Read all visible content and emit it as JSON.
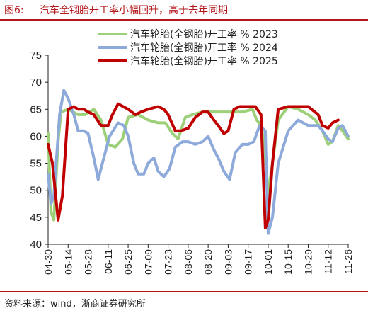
{
  "figure": {
    "label": "图6:",
    "title": "汽车全钢胎开工率小幅回升，高于去年同期",
    "source": "资料来源：wind，浙商证券研究所"
  },
  "chart_data": {
    "type": "line",
    "ylim": [
      40,
      75
    ],
    "yticks": [
      40,
      45,
      50,
      55,
      60,
      65,
      70,
      75
    ],
    "xlim": [
      "04-30",
      "11-26"
    ],
    "xtick_labels": [
      "04-30",
      "05-14",
      "05-28",
      "06-11",
      "06-25",
      "07-09",
      "07-23",
      "08-06",
      "08-20",
      "09-03",
      "09-17",
      "10-01",
      "10-15",
      "10-29",
      "11-12",
      "11-26"
    ],
    "legend_position": "top-right",
    "grid": false,
    "series": [
      {
        "name": "汽车轮胎(全钢胎)开工率 % 2023",
        "color": "#9ed07a",
        "points": [
          [
            "04-30",
            60.5
          ],
          [
            "05-02",
            46
          ],
          [
            "05-04",
            44.5
          ],
          [
            "05-07",
            59
          ],
          [
            "05-09",
            64.5
          ],
          [
            "05-14",
            65
          ],
          [
            "05-21",
            64
          ],
          [
            "05-26",
            64
          ],
          [
            "06-01",
            65
          ],
          [
            "06-06",
            63
          ],
          [
            "06-11",
            58.5
          ],
          [
            "06-16",
            58
          ],
          [
            "06-21",
            59.5
          ],
          [
            "06-25",
            63.5
          ],
          [
            "07-02",
            64
          ],
          [
            "07-09",
            63
          ],
          [
            "07-16",
            62.5
          ],
          [
            "07-21",
            62.5
          ],
          [
            "07-26",
            60.5
          ],
          [
            "07-30",
            59.5
          ],
          [
            "08-04",
            63.5
          ],
          [
            "08-09",
            64
          ],
          [
            "08-16",
            64.5
          ],
          [
            "08-23",
            64.5
          ],
          [
            "08-30",
            64.5
          ],
          [
            "09-06",
            64.5
          ],
          [
            "09-13",
            64.5
          ],
          [
            "09-20",
            65
          ],
          [
            "09-23",
            63
          ],
          [
            "09-26",
            62
          ],
          [
            "09-28",
            59
          ],
          [
            "10-01",
            49.5
          ],
          [
            "10-04",
            55
          ],
          [
            "10-08",
            63
          ],
          [
            "10-15",
            65.5
          ],
          [
            "10-22",
            65
          ],
          [
            "10-29",
            64
          ],
          [
            "11-03",
            63
          ],
          [
            "11-08",
            61
          ],
          [
            "11-12",
            58.5
          ],
          [
            "11-15",
            59
          ],
          [
            "11-19",
            62
          ],
          [
            "11-22",
            61
          ],
          [
            "11-26",
            59.5
          ]
        ]
      },
      {
        "name": "汽车轮胎(全钢胎)开工率 % 2024",
        "color": "#8eaadb",
        "points": [
          [
            "04-30",
            53
          ],
          [
            "05-02",
            47.5
          ],
          [
            "05-04",
            49
          ],
          [
            "05-08",
            64
          ],
          [
            "05-11",
            68.5
          ],
          [
            "05-14",
            67
          ],
          [
            "05-18",
            64
          ],
          [
            "05-21",
            61
          ],
          [
            "05-25",
            61
          ],
          [
            "05-28",
            60.5
          ],
          [
            "06-01",
            56
          ],
          [
            "06-04",
            52
          ],
          [
            "06-08",
            56
          ],
          [
            "06-12",
            60
          ],
          [
            "06-18",
            62.5
          ],
          [
            "06-22",
            62
          ],
          [
            "06-25",
            60
          ],
          [
            "06-29",
            55
          ],
          [
            "07-02",
            53
          ],
          [
            "07-06",
            53
          ],
          [
            "07-09",
            55
          ],
          [
            "07-13",
            56
          ],
          [
            "07-16",
            53.5
          ],
          [
            "07-20",
            52.5
          ],
          [
            "07-24",
            54
          ],
          [
            "07-28",
            58
          ],
          [
            "08-02",
            59
          ],
          [
            "08-06",
            59
          ],
          [
            "08-11",
            58.5
          ],
          [
            "08-16",
            59
          ],
          [
            "08-20",
            60
          ],
          [
            "08-24",
            57.5
          ],
          [
            "08-27",
            56
          ],
          [
            "08-31",
            53.5
          ],
          [
            "09-04",
            52
          ],
          [
            "09-08",
            57
          ],
          [
            "09-13",
            58.5
          ],
          [
            "09-17",
            58.5
          ],
          [
            "09-21",
            59
          ],
          [
            "09-25",
            62
          ],
          [
            "09-29",
            61
          ],
          [
            "10-01",
            42
          ],
          [
            "10-04",
            45
          ],
          [
            "10-08",
            55
          ],
          [
            "10-15",
            61
          ],
          [
            "10-22",
            63
          ],
          [
            "10-29",
            62
          ],
          [
            "11-05",
            62
          ],
          [
            "11-08",
            61
          ],
          [
            "11-12",
            59.5
          ],
          [
            "11-15",
            59
          ],
          [
            "11-19",
            61.5
          ],
          [
            "11-22",
            62
          ],
          [
            "11-26",
            60
          ]
        ]
      },
      {
        "name": "汽车轮胎(全钢胎)开工率 % 2025",
        "color": "#c00000",
        "points": [
          [
            "04-30",
            58.5
          ],
          [
            "05-03",
            55
          ],
          [
            "05-07",
            44.5
          ],
          [
            "05-10",
            49
          ],
          [
            "05-14",
            65
          ],
          [
            "05-18",
            65.5
          ],
          [
            "05-21",
            65
          ],
          [
            "05-25",
            65
          ],
          [
            "05-28",
            64.5
          ],
          [
            "06-01",
            64
          ],
          [
            "06-06",
            62
          ],
          [
            "06-11",
            62
          ],
          [
            "06-14",
            64
          ],
          [
            "06-18",
            66
          ],
          [
            "06-25",
            65
          ],
          [
            "06-30",
            64
          ],
          [
            "07-04",
            64.5
          ],
          [
            "07-09",
            65
          ],
          [
            "07-16",
            65.5
          ],
          [
            "07-20",
            65
          ],
          [
            "07-23",
            64
          ],
          [
            "07-28",
            61
          ],
          [
            "08-01",
            61
          ],
          [
            "08-06",
            61.5
          ],
          [
            "08-11",
            63.5
          ],
          [
            "08-16",
            64.5
          ],
          [
            "08-20",
            64.5
          ],
          [
            "08-24",
            63
          ],
          [
            "08-27",
            62
          ],
          [
            "08-31",
            60.5
          ],
          [
            "09-03",
            61
          ],
          [
            "09-07",
            65
          ],
          [
            "09-11",
            65.5
          ],
          [
            "09-14",
            65.5
          ],
          [
            "09-18",
            65.5
          ],
          [
            "09-22",
            65.5
          ],
          [
            "09-26",
            64
          ],
          [
            "09-29",
            43
          ],
          [
            "10-01",
            44.5
          ],
          [
            "10-04",
            55
          ],
          [
            "10-08",
            65
          ],
          [
            "10-15",
            65.5
          ],
          [
            "10-22",
            65.5
          ],
          [
            "10-29",
            65.5
          ],
          [
            "11-05",
            64
          ],
          [
            "11-08",
            62
          ],
          [
            "11-12",
            61.5
          ],
          [
            "11-15",
            62.5
          ],
          [
            "11-19",
            63
          ]
        ]
      }
    ]
  }
}
